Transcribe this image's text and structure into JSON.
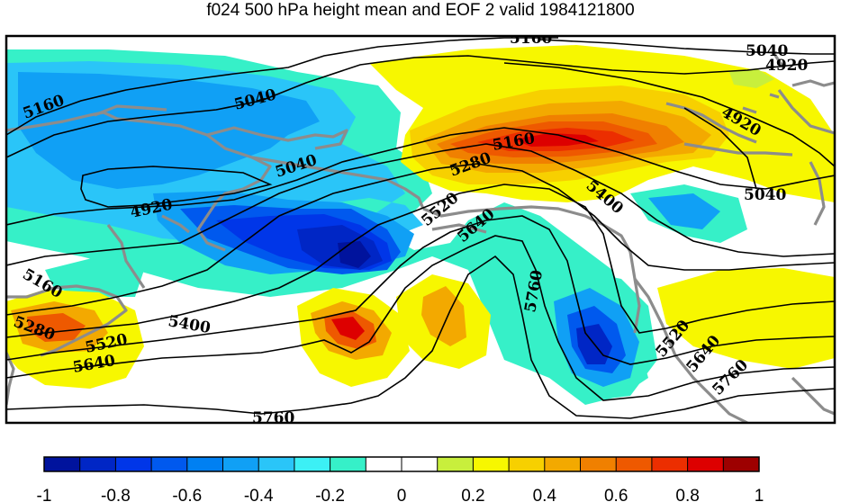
{
  "title": "f024 500 hPa height mean and EOF 2 valid 1984121800",
  "map": {
    "shading_variable": "EOF 2",
    "contour_variable": "500 hPa height mean",
    "contour_color": "#000000",
    "coastline_color": "#8c8c8c",
    "contour_labels": [
      "5160",
      "5040",
      "4920",
      "5160",
      "5280",
      "5400",
      "5520",
      "5640",
      "5760",
      "5040",
      "4920",
      "5040",
      "4920",
      "5160",
      "5280",
      "5400",
      "5520",
      "5640",
      "5760",
      "5280",
      "5520",
      "5640",
      "5160",
      "5400",
      "5520",
      "5640",
      "5760",
      "5040"
    ],
    "positive_features": [
      {
        "name": "northern-positive",
        "peak": 0.8
      },
      {
        "name": "central-positive",
        "peak": 0.7
      },
      {
        "name": "central-east-positive",
        "peak": 0.5
      },
      {
        "name": "west-positive",
        "peak": 0.6
      },
      {
        "name": "east-positive",
        "peak": 0.2
      }
    ],
    "negative_features": [
      {
        "name": "central-negative",
        "peak": -0.9
      },
      {
        "name": "southeast-negative",
        "peak": -0.9
      },
      {
        "name": "northwest-negative",
        "peak": -0.5
      }
    ]
  },
  "colorbar": {
    "min": -1,
    "max": 1,
    "step": 0.1,
    "tick_labels": [
      "-1",
      "-0.8",
      "-0.6",
      "-0.4",
      "-0.2",
      "0",
      "0.2",
      "0.4",
      "0.6",
      "0.8",
      "1"
    ],
    "colors": [
      "#00139d",
      "#0026c5",
      "#0036e8",
      "#0059ee",
      "#0080f2",
      "#10a0f5",
      "#2ac5f8",
      "#3cf0f5",
      "#36f0c8",
      "#ffffff",
      "#ffffff",
      "#c8ef3c",
      "#f7f700",
      "#f7d000",
      "#f3a900",
      "#f08000",
      "#ee5900",
      "#ec2e00",
      "#dd0000",
      "#9d0000"
    ]
  }
}
